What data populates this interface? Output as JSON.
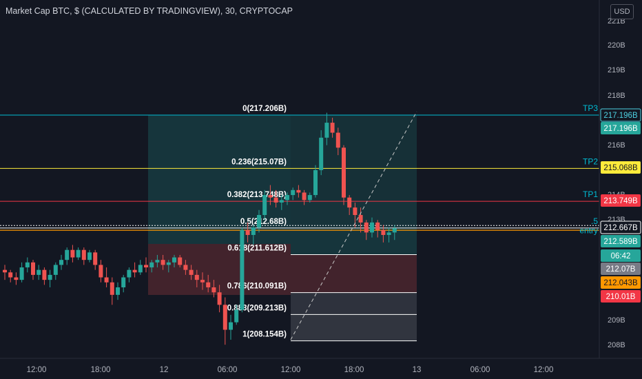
{
  "title": "Market Cap BTC, $ (CALCULATED BY TRADINGVIEW), 30, CRYPTOCAP",
  "currency_button": "USD",
  "colors": {
    "bg": "#131722",
    "up": "#26a69a",
    "down": "#ef5350",
    "text": "#b2b5be"
  },
  "chart_data": {
    "type": "candlestick",
    "y_ticks": [
      "221B",
      "220B",
      "219B",
      "218B",
      "216B",
      "214B",
      "213B",
      "209B",
      "208B"
    ],
    "x_ticks": [
      "12:00",
      "18:00",
      "12",
      "06:00",
      "12:00",
      "18:00",
      "13",
      "06:00",
      "12:00"
    ],
    "fib_levels": [
      {
        "label": "0(217.206B)",
        "value": 217.206,
        "color": "#00bcd4"
      },
      {
        "label": "0.236(215.07B)",
        "value": 215.07,
        "color": "#ffeb3b"
      },
      {
        "label": "0.382(213.748B)",
        "value": 213.748,
        "color": "#f23645"
      },
      {
        "label": "0.5(212.68B)",
        "value": 212.68,
        "color": "#ffffff"
      },
      {
        "label": "0.618(211.612B)",
        "value": 211.612,
        "color": "#ffffff"
      },
      {
        "label": "0.786(210.091B)",
        "value": 210.091,
        "color": "#ffffff"
      },
      {
        "label": "0.883(209.213B)",
        "value": 209.213,
        "color": "#ffffff"
      },
      {
        "label": "1(208.154B)",
        "value": 208.154,
        "color": "#ffffff"
      }
    ],
    "line_labels": [
      "TP3",
      "TP2",
      "TP1",
      ".5",
      "entry"
    ],
    "price_tags": [
      {
        "text": "217.196B",
        "bg": "#131722",
        "fg": "#4dd0e1",
        "border": "#4dd0e1"
      },
      {
        "text": "217.196B",
        "bg": "#26a69a",
        "fg": "#ffffff"
      },
      {
        "text": "215.068B",
        "bg": "#ffeb3b",
        "fg": "#131722"
      },
      {
        "text": "213.749B",
        "bg": "#f23645",
        "fg": "#ffffff"
      },
      {
        "text": "212.667B",
        "bg": "#131722",
        "fg": "#ffffff",
        "border": "#ffffff"
      },
      {
        "text": "212.589B",
        "bg": "#26a69a",
        "fg": "#ffffff"
      },
      {
        "text": "06:42",
        "bg": "#26a69a",
        "fg": "#ffffff"
      },
      {
        "text": "212.07B",
        "bg": "#787b86",
        "fg": "#ffffff"
      },
      {
        "text": "212.043B",
        "bg": "#ff9800",
        "fg": "#131722"
      },
      {
        "text": "210.01B",
        "bg": "#f23645",
        "fg": "#ffffff"
      }
    ],
    "candles": [
      [
        211.0,
        211.2,
        210.6,
        210.9
      ],
      [
        210.9,
        211.0,
        210.5,
        210.7
      ],
      [
        210.7,
        210.9,
        210.4,
        210.6
      ],
      [
        210.6,
        211.3,
        210.5,
        211.1
      ],
      [
        211.1,
        211.5,
        210.9,
        211.3
      ],
      [
        211.3,
        211.4,
        210.6,
        210.8
      ],
      [
        210.8,
        211.2,
        210.6,
        211.0
      ],
      [
        211.0,
        211.1,
        210.4,
        210.6
      ],
      [
        210.6,
        211.0,
        210.3,
        210.8
      ],
      [
        210.8,
        211.3,
        210.6,
        211.2
      ],
      [
        211.2,
        211.6,
        211.0,
        211.4
      ],
      [
        211.4,
        211.9,
        211.2,
        211.8
      ],
      [
        211.8,
        212.0,
        211.3,
        211.5
      ],
      [
        211.5,
        211.9,
        211.4,
        211.8
      ],
      [
        211.8,
        211.9,
        211.2,
        211.4
      ],
      [
        211.4,
        211.8,
        211.3,
        211.7
      ],
      [
        211.7,
        211.8,
        211.0,
        211.2
      ],
      [
        211.2,
        211.4,
        210.5,
        210.7
      ],
      [
        210.7,
        211.1,
        210.3,
        210.5
      ],
      [
        210.5,
        210.7,
        209.6,
        210.0
      ],
      [
        210.0,
        210.5,
        209.8,
        210.3
      ],
      [
        210.3,
        210.8,
        210.1,
        210.7
      ],
      [
        210.7,
        211.1,
        210.5,
        211.0
      ],
      [
        211.0,
        211.3,
        210.7,
        210.9
      ],
      [
        210.9,
        211.4,
        210.8,
        211.2
      ],
      [
        211.2,
        211.5,
        210.9,
        211.1
      ],
      [
        211.1,
        211.4,
        210.9,
        211.3
      ],
      [
        211.3,
        211.6,
        211.1,
        211.4
      ],
      [
        211.4,
        211.6,
        211.0,
        211.2
      ],
      [
        211.2,
        211.4,
        210.9,
        211.3
      ],
      [
        211.3,
        211.6,
        211.1,
        211.5
      ],
      [
        211.5,
        211.6,
        211.1,
        211.2
      ],
      [
        211.2,
        211.4,
        210.8,
        211.0
      ],
      [
        211.0,
        211.2,
        210.6,
        210.8
      ],
      [
        210.8,
        211.0,
        210.3,
        210.6
      ],
      [
        210.6,
        210.9,
        210.2,
        210.5
      ],
      [
        210.5,
        210.8,
        210.1,
        210.3
      ],
      [
        210.3,
        210.6,
        209.9,
        210.1
      ],
      [
        210.1,
        210.4,
        209.3,
        209.6
      ],
      [
        209.6,
        209.9,
        208.0,
        208.6
      ],
      [
        208.6,
        209.2,
        208.2,
        208.9
      ],
      [
        208.9,
        209.6,
        208.8,
        209.4
      ],
      [
        209.4,
        212.7,
        209.3,
        212.6
      ],
      [
        212.6,
        212.9,
        212.1,
        212.4
      ],
      [
        212.4,
        212.8,
        212.0,
        212.7
      ],
      [
        212.7,
        213.4,
        212.5,
        213.2
      ],
      [
        213.2,
        214.2,
        213.0,
        214.0
      ],
      [
        214.0,
        214.4,
        213.6,
        213.9
      ],
      [
        213.9,
        214.2,
        213.5,
        213.7
      ],
      [
        213.7,
        214.0,
        213.4,
        213.8
      ],
      [
        213.8,
        214.1,
        213.6,
        214.0
      ],
      [
        214.0,
        214.3,
        213.8,
        214.2
      ],
      [
        214.2,
        214.4,
        213.9,
        214.1
      ],
      [
        214.1,
        214.2,
        213.6,
        213.8
      ],
      [
        213.8,
        214.1,
        213.7,
        214.0
      ],
      [
        214.0,
        215.2,
        213.9,
        215.0
      ],
      [
        215.0,
        216.6,
        214.8,
        216.3
      ],
      [
        216.3,
        217.3,
        216.0,
        216.9
      ],
      [
        216.9,
        217.1,
        216.3,
        216.5
      ],
      [
        216.5,
        216.7,
        215.6,
        215.9
      ],
      [
        215.9,
        216.0,
        213.6,
        213.9
      ],
      [
        213.9,
        214.0,
        213.2,
        213.5
      ],
      [
        213.5,
        213.7,
        212.7,
        213.2
      ],
      [
        213.2,
        213.5,
        212.5,
        212.9
      ],
      [
        212.9,
        213.0,
        212.2,
        212.5
      ],
      [
        212.5,
        213.1,
        212.3,
        212.9
      ],
      [
        212.9,
        213.0,
        212.3,
        212.6
      ],
      [
        212.6,
        212.8,
        212.1,
        212.4
      ],
      [
        212.4,
        212.7,
        212.1,
        212.5
      ],
      [
        212.5,
        212.8,
        212.2,
        212.67
      ]
    ]
  }
}
